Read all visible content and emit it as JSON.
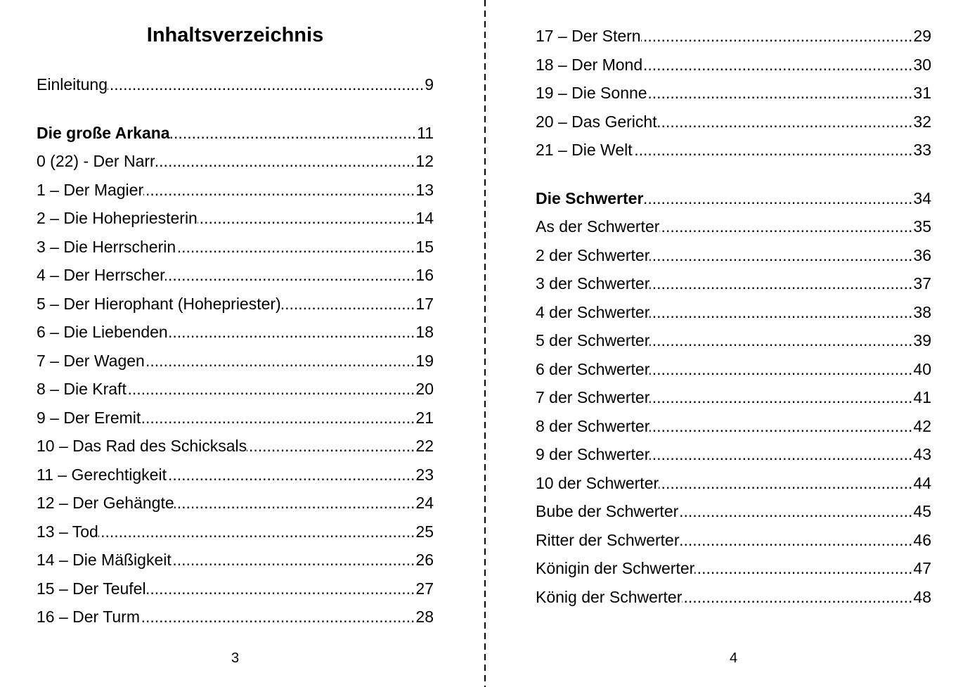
{
  "document": {
    "title": "Inhaltsverzeichnis",
    "colors": {
      "text": "#000000",
      "background": "#ffffff"
    },
    "pages": [
      {
        "page_number": "3",
        "entries": [
          {
            "label": "Einleitung",
            "page": "9"
          },
          {
            "label": "Die große Arkana",
            "page": "11",
            "bold": true,
            "gap_before": true
          },
          {
            "label": "0 (22) - Der Narr",
            "page": "12"
          },
          {
            "label": "1 – Der Magier",
            "page": "13"
          },
          {
            "label": "2 – Die Hohepriesterin",
            "page": "14"
          },
          {
            "label": "3 – Die Herrscherin",
            "page": "15"
          },
          {
            "label": "4 – Der Herrscher",
            "page": "16"
          },
          {
            "label": "5 – Der Hierophant (Hohepriester)",
            "page": "17"
          },
          {
            "label": "6 – Die Liebenden",
            "page": "18"
          },
          {
            "label": "7 – Der Wagen",
            "page": "19"
          },
          {
            "label": "8 – Die Kraft",
            "page": "20"
          },
          {
            "label": "9 – Der Eremit",
            "page": "21"
          },
          {
            "label": "10 – Das Rad des Schicksals",
            "page": "22"
          },
          {
            "label": "11 – Gerechtigkeit",
            "page": "23"
          },
          {
            "label": "12 – Der Gehängte",
            "page": "24"
          },
          {
            "label": "13 – Tod",
            "page": "25"
          },
          {
            "label": "14 – Die Mäßigkeit",
            "page": "26"
          },
          {
            "label": "15 – Der Teufel",
            "page": "27"
          },
          {
            "label": "16 – Der Turm",
            "page": "28"
          }
        ]
      },
      {
        "page_number": "4",
        "entries": [
          {
            "label": "17 – Der Stern",
            "page": "29"
          },
          {
            "label": "18 – Der Mond",
            "page": "30"
          },
          {
            "label": "19 – Die Sonne",
            "page": "31"
          },
          {
            "label": "20 – Das Gericht",
            "page": "32"
          },
          {
            "label": "21 – Die Welt",
            "page": "33"
          },
          {
            "label": "Die Schwerter",
            "page": "34",
            "bold": true,
            "gap_before": true
          },
          {
            "label": "As der Schwerter",
            "page": "35"
          },
          {
            "label": "2 der Schwerter",
            "page": "36"
          },
          {
            "label": "3 der Schwerter",
            "page": "37"
          },
          {
            "label": "4 der Schwerter",
            "page": "38"
          },
          {
            "label": "5 der Schwerter",
            "page": "39"
          },
          {
            "label": "6 der Schwerter",
            "page": "40"
          },
          {
            "label": "7 der Schwerter",
            "page": "41"
          },
          {
            "label": "8 der Schwerter",
            "page": "42"
          },
          {
            "label": "9 der Schwerter",
            "page": "43"
          },
          {
            "label": "10 der Schwerter",
            "page": "44"
          },
          {
            "label": "Bube der Schwerter",
            "page": "45"
          },
          {
            "label": "Ritter der Schwerter",
            "page": "46"
          },
          {
            "label": "Königin der Schwerter",
            "page": "47"
          },
          {
            "label": "König der Schwerter",
            "page": "48"
          }
        ]
      }
    ]
  }
}
